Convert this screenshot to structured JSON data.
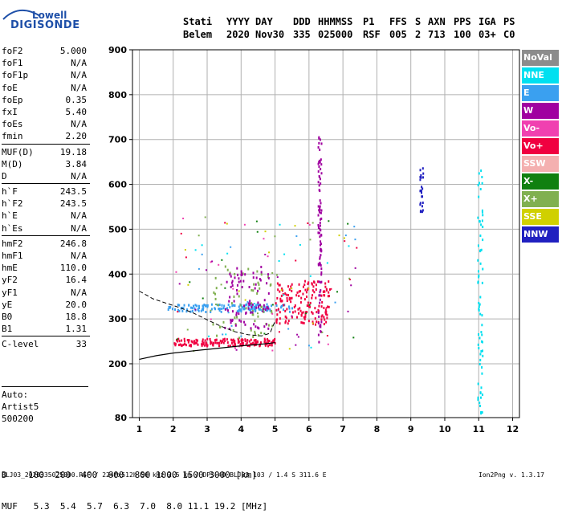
{
  "logo": {
    "line1": "Lowell",
    "line2": "DIGISONDE"
  },
  "header": {
    "row1": [
      "Stati",
      "YYYY",
      "DAY",
      "DDD",
      "HHMMSS",
      "P1",
      "FFS",
      "S",
      "AXN",
      "PPS",
      "IGA",
      "PS"
    ],
    "row2": [
      "Belem",
      "2020",
      "Nov30",
      "335",
      "025000",
      "RSF",
      "005",
      "2",
      "713",
      "100",
      "03+",
      "C0"
    ]
  },
  "parameters": [
    {
      "name": "foF2",
      "value": "5.000"
    },
    {
      "name": "foF1",
      "value": "N/A"
    },
    {
      "name": "foF1p",
      "value": "N/A"
    },
    {
      "name": "foE",
      "value": "N/A"
    },
    {
      "name": "foEp",
      "value": "0.35"
    },
    {
      "name": "fxI",
      "value": "5.40"
    },
    {
      "name": "foEs",
      "value": "N/A"
    },
    {
      "name": "fmin",
      "value": "2.20"
    },
    {
      "name": "MUF(D)",
      "value": "19.18",
      "sep": true
    },
    {
      "name": "M(D)",
      "value": "3.84"
    },
    {
      "name": "D",
      "value": "N/A"
    },
    {
      "name": "h`F",
      "value": "243.5",
      "sep": true
    },
    {
      "name": "h`F2",
      "value": "243.5"
    },
    {
      "name": "h`E",
      "value": "N/A"
    },
    {
      "name": "h`Es",
      "value": "N/A"
    },
    {
      "name": "hmF2",
      "value": "246.8",
      "sep": true
    },
    {
      "name": "hmF1",
      "value": "N/A"
    },
    {
      "name": "hmE",
      "value": "110.0"
    },
    {
      "name": "yF2",
      "value": "16.4"
    },
    {
      "name": "yF1",
      "value": "N/A"
    },
    {
      "name": "yE",
      "value": "20.0"
    },
    {
      "name": "B0",
      "value": "18.8"
    },
    {
      "name": "B1",
      "value": "1.31"
    },
    {
      "name": "C-level",
      "value": "33",
      "sep": true
    }
  ],
  "auto": {
    "line1": "Auto:",
    "line2": "Artist5",
    "line3": "500200"
  },
  "d_muf": {
    "d_line": "D    100  200  400  600  800 1000 1500 3000 [km]",
    "muf_line": "MUF   5.3  5.4  5.7  6.3  7.0  8.0 11.1 19.2 [MHz]"
  },
  "footer": {
    "left": "BLJ03_2020335025000.RSF / 224fx512h 50 kHz 2.5 km / DPS-4D BLJ03 103 / 1.4 S 311.6 E",
    "right": "Ion2Png v. 1.3.17"
  },
  "legend": [
    {
      "label": "NoVal",
      "color": "#8c8c8c"
    },
    {
      "label": "NNE",
      "color": "#00e0f0"
    },
    {
      "label": "E",
      "color": "#3aa0f0"
    },
    {
      "label": "W",
      "color": "#a000a0"
    },
    {
      "label": "Vo-",
      "color": "#f040b0"
    },
    {
      "label": "Vo+",
      "color": "#f00040"
    },
    {
      "label": "SSW",
      "color": "#f4b0b0"
    },
    {
      "label": "X-",
      "color": "#108010"
    },
    {
      "label": "X+",
      "color": "#80b050"
    },
    {
      "label": "SSE",
      "color": "#d0d000"
    },
    {
      "label": "NNW",
      "color": "#2020c0"
    }
  ],
  "chart_data": {
    "type": "scatter",
    "x_ticks": [
      1,
      2,
      3,
      4,
      5,
      6,
      7,
      8,
      9,
      10,
      11,
      12
    ],
    "y_ticks": [
      80,
      200,
      300,
      400,
      500,
      600,
      700,
      800,
      900
    ],
    "xlim": [
      0.8,
      12.2
    ],
    "ylim": [
      80,
      900
    ],
    "grid": true,
    "legend_position": "right",
    "profile_curve": [
      [
        1.0,
        210
      ],
      [
        1.5,
        218
      ],
      [
        2.0,
        224
      ],
      [
        2.5,
        228
      ],
      [
        3.0,
        232
      ],
      [
        3.5,
        236
      ],
      [
        4.0,
        240
      ],
      [
        4.5,
        243
      ],
      [
        5.0,
        247
      ]
    ],
    "virtual_height_curve": [
      [
        1.0,
        362
      ],
      [
        1.4,
        345
      ],
      [
        1.8,
        335
      ],
      [
        2.2,
        325
      ],
      [
        2.6,
        313
      ],
      [
        3.0,
        298
      ],
      [
        3.4,
        284
      ],
      [
        3.8,
        272
      ],
      [
        4.2,
        265
      ],
      [
        4.6,
        262
      ],
      [
        4.85,
        268
      ],
      [
        5.0,
        295
      ]
    ],
    "clusters": [
      {
        "name": "E",
        "x": [
          1.8,
          5.5
        ],
        "y": [
          318,
          335
        ]
      },
      {
        "name": "Vo+",
        "x": [
          2.0,
          5.0
        ],
        "y": [
          242,
          258
        ]
      },
      {
        "name": "Vo+",
        "x": [
          5.0,
          6.6
        ],
        "y": [
          290,
          390
        ]
      },
      {
        "name": "W",
        "x": [
          6.25,
          6.35
        ],
        "y": [
          250,
          720
        ]
      },
      {
        "name": "NNE",
        "x": [
          10.95,
          11.1
        ],
        "y": [
          90,
          650
        ]
      },
      {
        "name": "NNW",
        "x": [
          9.25,
          9.35
        ],
        "y": [
          540,
          640
        ]
      },
      {
        "name": "X+",
        "x": [
          3.0,
          4.9
        ],
        "y": [
          260,
          420
        ]
      },
      {
        "name": "W",
        "x": [
          3.5,
          4.8
        ],
        "y": [
          280,
          420
        ]
      }
    ]
  }
}
